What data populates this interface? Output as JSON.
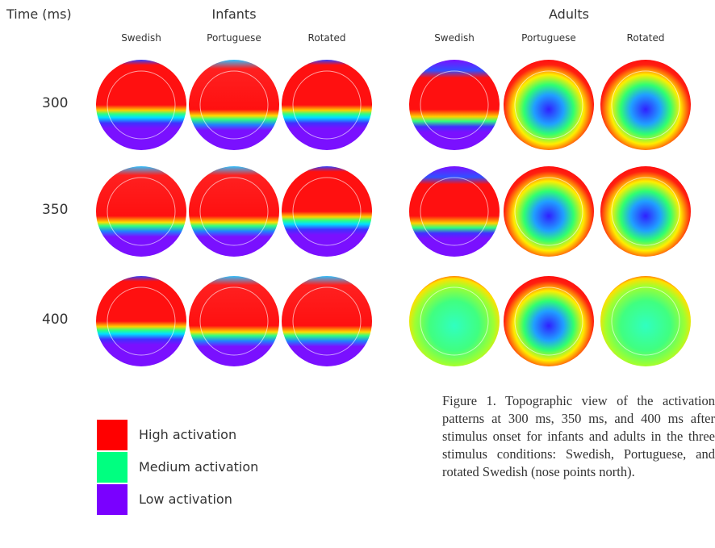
{
  "header": {
    "time_label": "Time (ms)",
    "groups": [
      "Infants",
      "Adults"
    ],
    "conditions": [
      "Swedish",
      "Portuguese",
      "Rotated",
      "Swedish",
      "Portuguese",
      "Rotated"
    ]
  },
  "rows": [
    "300",
    "350",
    "400"
  ],
  "legend": [
    "High activation",
    "Medium activation",
    "Low activation"
  ],
  "caption": "Figure 1. Topographic view of the activation patterns at 300 ms, 350 ms, and 400 ms after stimulus onset for infants and adults in the three stimulus conditions: Swedish, Portuguese, and rotated Swedish (nose points north)."
}
